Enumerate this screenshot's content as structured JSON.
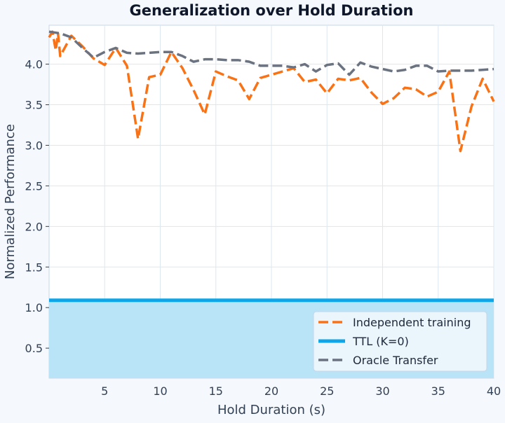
{
  "chart_data": {
    "type": "line",
    "title": "Generalization over Hold Duration",
    "xlabel": "Hold Duration (s)",
    "ylabel": "Normalized Performance",
    "xlim": [
      0,
      40
    ],
    "ylim": [
      0.13,
      4.48
    ],
    "xticks": [
      5,
      10,
      15,
      20,
      25,
      30,
      35,
      40
    ],
    "yticks": [
      0.5,
      1.0,
      1.5,
      2.0,
      2.5,
      3.0,
      3.5,
      4.0
    ],
    "grid": true,
    "legend_position": "lower-right",
    "series": [
      {
        "name": "Independent training",
        "color": "#f97316",
        "style": "dashed",
        "x": [
          0,
          0.3,
          0.6,
          0.8,
          1,
          2,
          3,
          4,
          5,
          6,
          7,
          8,
          9,
          10,
          11,
          12,
          13,
          14,
          15,
          16,
          17,
          18,
          19,
          20,
          21,
          22,
          23,
          24,
          25,
          26,
          27,
          28,
          29,
          30,
          31,
          32,
          33,
          34,
          35,
          36,
          37,
          38,
          39,
          40
        ],
        "y": [
          4.33,
          4.4,
          4.17,
          4.38,
          4.1,
          4.35,
          4.22,
          4.07,
          3.99,
          4.2,
          3.98,
          3.08,
          3.84,
          3.87,
          4.15,
          3.95,
          3.68,
          3.38,
          3.91,
          3.85,
          3.8,
          3.57,
          3.83,
          3.87,
          3.91,
          3.95,
          3.78,
          3.81,
          3.64,
          3.82,
          3.8,
          3.83,
          3.65,
          3.51,
          3.58,
          3.71,
          3.69,
          3.6,
          3.66,
          3.91,
          2.93,
          3.48,
          3.82,
          3.54
        ]
      },
      {
        "name": "TTL (K=0)",
        "color": "#0ea5e9",
        "fill": "#b9e3f7",
        "style": "solid",
        "x": [
          0,
          40
        ],
        "y": [
          1.09,
          1.09
        ]
      },
      {
        "name": "Oracle Transfer",
        "color": "#6b7280",
        "style": "dashed",
        "x": [
          0,
          1,
          2,
          3,
          4,
          5,
          6,
          7,
          8,
          9,
          10,
          11,
          12,
          13,
          14,
          15,
          16,
          17,
          18,
          19,
          20,
          21,
          22,
          23,
          24,
          25,
          26,
          27,
          28,
          29,
          30,
          31,
          32,
          33,
          34,
          35,
          36,
          37,
          38,
          39,
          40
        ],
        "y": [
          4.4,
          4.38,
          4.33,
          4.2,
          4.08,
          4.15,
          4.2,
          4.14,
          4.13,
          4.14,
          4.15,
          4.15,
          4.1,
          4.03,
          4.06,
          4.06,
          4.05,
          4.05,
          4.03,
          3.98,
          3.98,
          3.98,
          3.96,
          4.0,
          3.91,
          3.99,
          4.01,
          3.87,
          4.02,
          3.97,
          3.94,
          3.91,
          3.93,
          3.98,
          3.98,
          3.91,
          3.92,
          3.92,
          3.92,
          3.93,
          3.94
        ]
      }
    ]
  }
}
